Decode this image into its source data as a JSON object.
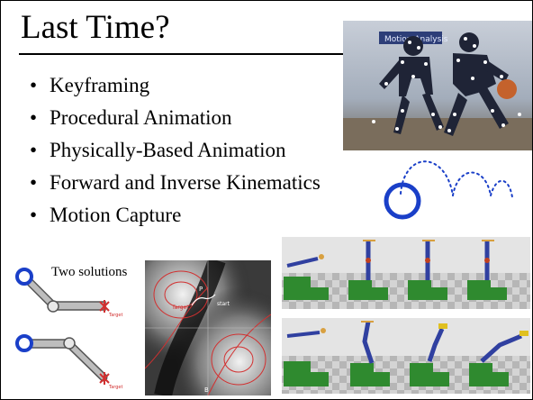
{
  "slide": {
    "title": "Last Time?",
    "bullet_glyph": "•",
    "bullets": [
      "Keyframing",
      "Procedural Animation",
      "Physically-Based Animation",
      "Forward and Inverse Kinematics",
      "Motion Capture"
    ]
  },
  "ik_diagram": {
    "caption": "Two solutions",
    "target_label": "Target"
  },
  "heatmap": {
    "label_p": "P",
    "label_target": "Target",
    "label_start": "start",
    "label_b": "B"
  },
  "mocap_photo": {
    "banner_text": "Motion Analysis"
  },
  "colors": {
    "joint_blue": "#1a3fc8",
    "arc_dots": "#1a3fc8",
    "contour_red": "#d23030",
    "block_green": "#2f8a2f"
  }
}
